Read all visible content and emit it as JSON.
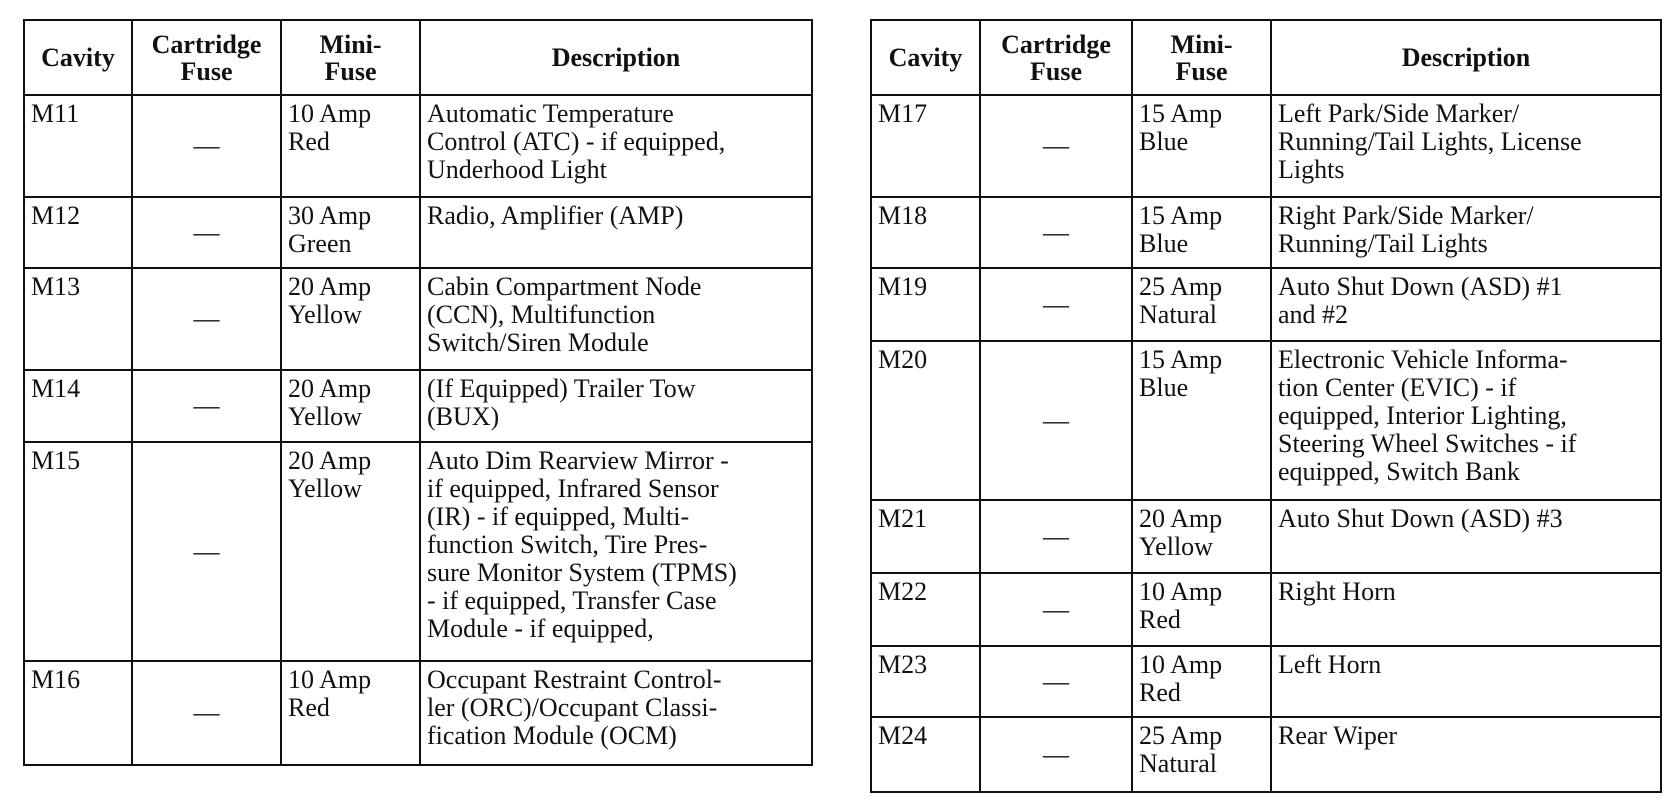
{
  "headers": {
    "cavity": "Cavity",
    "cartridge": "Cartridge\nFuse",
    "mini": "Mini-\nFuse",
    "description": "Description"
  },
  "left_table": [
    {
      "cavity": "M11",
      "cartridge": "—",
      "mini": "10 Amp\nRed",
      "description": "Automatic Temperature\nControl (ATC) - if equipped,\nUnderhood Light"
    },
    {
      "cavity": "M12",
      "cartridge": "—",
      "mini": "30 Amp\nGreen",
      "description": "Radio, Amplifier (AMP)"
    },
    {
      "cavity": "M13",
      "cartridge": "—",
      "mini": "20 Amp\nYellow",
      "description": "Cabin Compartment Node\n(CCN), Multifunction\nSwitch/Siren Module"
    },
    {
      "cavity": "M14",
      "cartridge": "—",
      "mini": "20 Amp\nYellow",
      "description": "(If Equipped) Trailer Tow\n(BUX)"
    },
    {
      "cavity": "M15",
      "cartridge": "—",
      "mini": "20 Amp\nYellow",
      "description": "Auto Dim Rearview Mirror -\nif equipped, Infrared Sensor\n(IR) - if equipped, Multi-\nfunction Switch, Tire Pres-\nsure Monitor System (TPMS)\n- if equipped, Transfer Case\nModule - if equipped,"
    },
    {
      "cavity": "M16",
      "cartridge": "—",
      "mini": "10 Amp\nRed",
      "description": "Occupant Restraint Control-\nler (ORC)/Occupant Classi-\nfication Module (OCM)"
    }
  ],
  "right_table": [
    {
      "cavity": "M17",
      "cartridge": "—",
      "mini": "15 Amp\nBlue",
      "description": "Left Park/Side Marker/\nRunning/Tail Lights, License\nLights"
    },
    {
      "cavity": "M18",
      "cartridge": "—",
      "mini": "15 Amp\nBlue",
      "description": "Right Park/Side Marker/\nRunning/Tail Lights"
    },
    {
      "cavity": "M19",
      "cartridge": "—",
      "mini": "25 Amp\nNatural",
      "description": "Auto Shut Down (ASD) #1\nand #2"
    },
    {
      "cavity": "M20",
      "cartridge": "—",
      "mini": "15 Amp\nBlue",
      "description": "Electronic Vehicle Informa-\ntion Center (EVIC) - if\nequipped, Interior Lighting,\nSteering Wheel Switches - if\nequipped, Switch Bank"
    },
    {
      "cavity": "M21",
      "cartridge": "—",
      "mini": "20 Amp\nYellow",
      "description": "Auto Shut Down (ASD) #3"
    },
    {
      "cavity": "M22",
      "cartridge": "—",
      "mini": "10 Amp\nRed",
      "description": "Right Horn"
    },
    {
      "cavity": "M23",
      "cartridge": "—",
      "mini": "10 Amp\nRed",
      "description": "Left Horn"
    },
    {
      "cavity": "M24",
      "cartridge": "—",
      "mini": "25 Amp\nNatural",
      "description": "Rear Wiper"
    }
  ]
}
